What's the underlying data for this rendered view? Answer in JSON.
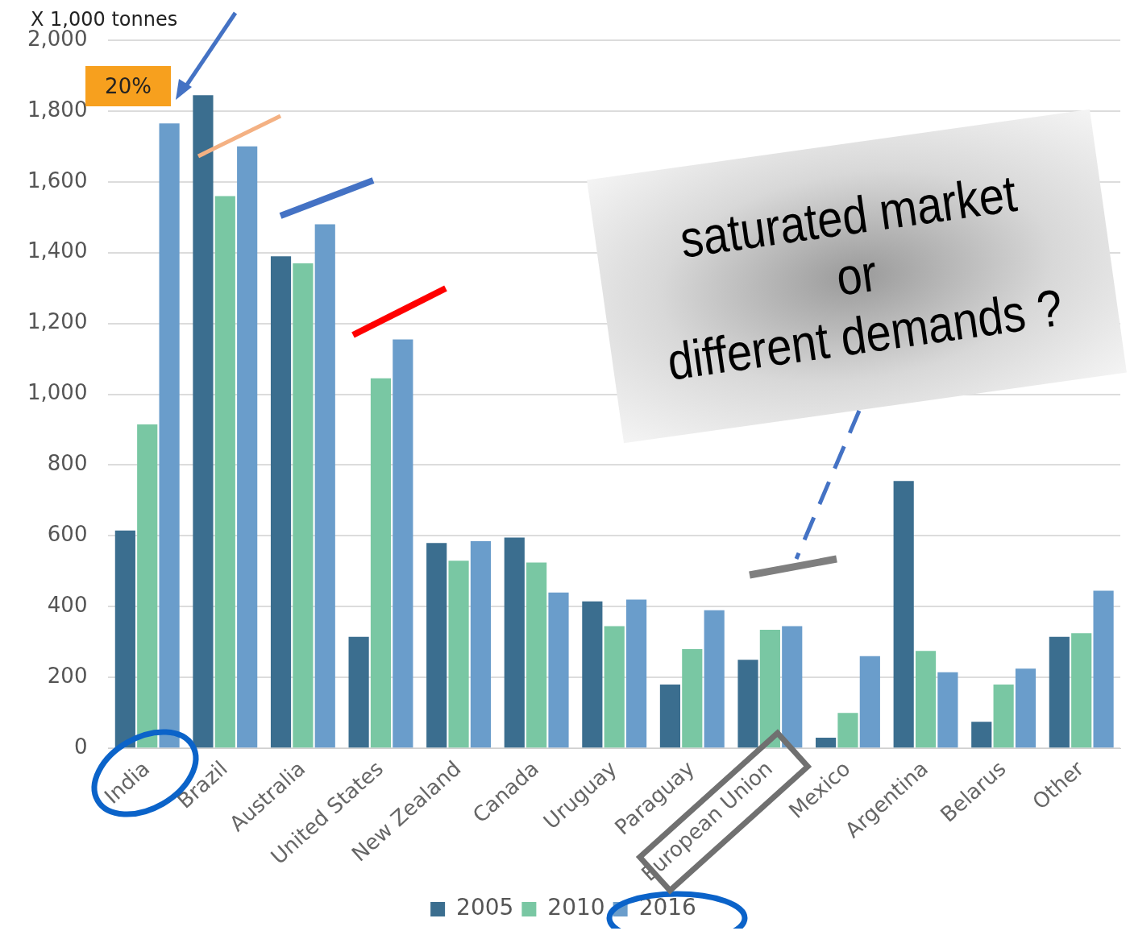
{
  "chart_data": {
    "type": "bar",
    "ylabel": "X 1,000 tonnes",
    "categories": [
      "India",
      "Brazil",
      "Australia",
      "United States",
      "New Zealand",
      "Canada",
      "Uruguay",
      "Paraguay",
      "European Union",
      "Mexico",
      "Argentina",
      "Belarus",
      "Other"
    ],
    "series": [
      {
        "name": "2005",
        "color": "#3b6e8f",
        "values": [
          615,
          1845,
          1390,
          315,
          580,
          595,
          415,
          180,
          250,
          30,
          755,
          75,
          315
        ]
      },
      {
        "name": "2010",
        "color": "#79c7a3",
        "values": [
          915,
          1560,
          1370,
          1045,
          530,
          525,
          345,
          280,
          335,
          100,
          275,
          180,
          325
        ]
      },
      {
        "name": "2016",
        "color": "#6a9dcb",
        "values": [
          1765,
          1700,
          1480,
          1155,
          585,
          440,
          420,
          390,
          345,
          260,
          215,
          225,
          445
        ]
      }
    ],
    "ylim": [
      0,
      2000
    ],
    "yticks": [
      {
        "value": 0,
        "label": "0"
      },
      {
        "value": 200,
        "label": "200"
      },
      {
        "value": 400,
        "label": "400"
      },
      {
        "value": 600,
        "label": "600"
      },
      {
        "value": 800,
        "label": "800"
      },
      {
        "value": 1000,
        "label": "1,000"
      },
      {
        "value": 1200,
        "label": "1,200"
      },
      {
        "value": 1400,
        "label": "1,400"
      },
      {
        "value": 1600,
        "label": "1,600"
      },
      {
        "value": 1800,
        "label": "1,800"
      },
      {
        "value": 2000,
        "label": "2,000"
      }
    ],
    "grid": "y",
    "legend": "bottom",
    "annotations": [
      "20%",
      "saturated market\nor\ndifferent demands ?"
    ]
  }
}
